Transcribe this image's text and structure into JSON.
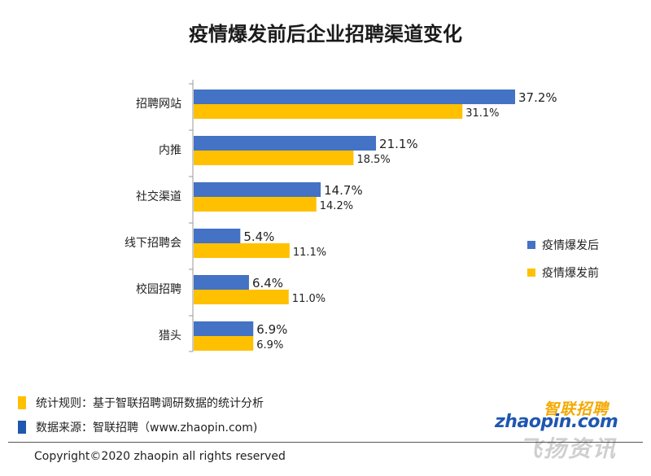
{
  "title": "疫情爆发前后企业招聘渠道变化",
  "colors": {
    "after": "#4472C4",
    "before": "#FFC000",
    "axis": "#9a9a9a"
  },
  "chart_data": {
    "type": "bar",
    "orientation": "horizontal",
    "title": "疫情爆发前后企业招聘渠道变化",
    "categories": [
      "招聘网站",
      "内推",
      "社交渠道",
      "线下招聘会",
      "校园招聘",
      "猎头"
    ],
    "series": [
      {
        "name": "疫情爆发后",
        "values": [
          37.2,
          21.1,
          14.7,
          5.4,
          6.4,
          6.9
        ],
        "labels": [
          "37.2%",
          "21.1%",
          "14.7%",
          "5.4%",
          "6.4%",
          "6.9%"
        ]
      },
      {
        "name": "疫情爆发前",
        "values": [
          31.1,
          18.5,
          14.2,
          11.1,
          11.0,
          6.9
        ],
        "labels": [
          "31.1%",
          "18.5%",
          "14.2%",
          "11.1%",
          "11.0%",
          "6.9%"
        ]
      }
    ],
    "xlim": [
      0,
      40
    ],
    "grid": false,
    "legend_position": "right"
  },
  "notes": {
    "rule": "统计规则：基于智联招聘调研数据的统计分析",
    "source": "数据来源：智联招聘（www.zhaopin.com)"
  },
  "copyright": "Copyright©2020 zhaopin all rights reserved",
  "logo": {
    "cn": "智联招聘",
    "en": "zhaopin.com"
  },
  "watermark": "飞扬资讯"
}
